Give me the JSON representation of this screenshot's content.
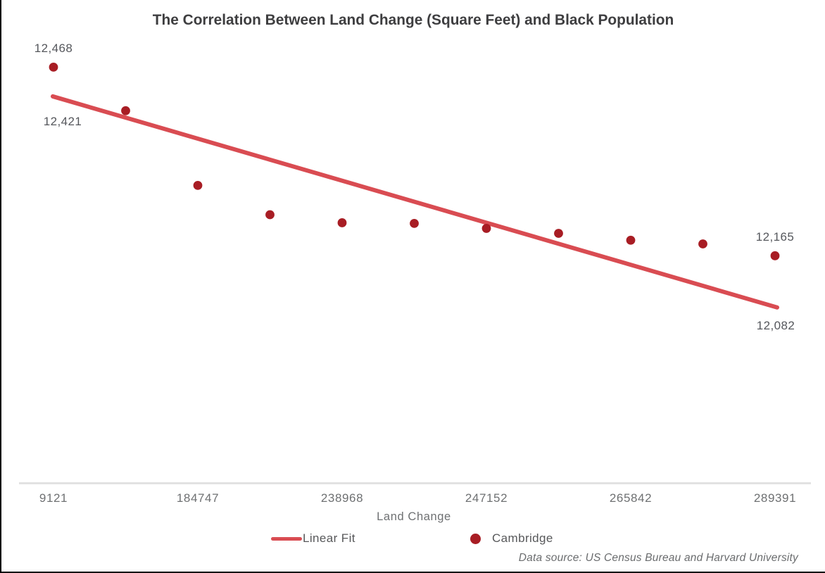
{
  "chart_data": {
    "type": "scatter",
    "title": "The Correlation Between Land Change (Square Feet) and Black Population",
    "xlabel": "Land Change",
    "ylabel": "",
    "grid": false,
    "legend_position": "bottom",
    "ylim": [
      11799,
      12508
    ],
    "x_tick_labels": [
      "9121",
      "184747",
      "238968",
      "247152",
      "265842",
      "289391"
    ],
    "x_tick_point_indices": [
      0,
      2,
      4,
      6,
      8,
      10
    ],
    "series": [
      {
        "name": "Linear Fit",
        "type": "line",
        "color": "#d94c52",
        "fit_start": 12421,
        "fit_end": 12082
      },
      {
        "name": "Cambridge",
        "type": "scatter",
        "color": "#a81d24",
        "values": [
          12468,
          12398,
          12278,
          12231,
          12218,
          12217,
          12209,
          12201,
          12190,
          12184,
          12165
        ]
      }
    ],
    "point_labels": [
      {
        "point_index": 0,
        "text": "12,468"
      },
      {
        "point_index": 10,
        "text": "12,165"
      }
    ],
    "fit_labels": {
      "start": "12,421",
      "end": "12,082"
    },
    "source_note": "Data source: US Census Bureau and Harvard University"
  },
  "legend": {
    "items": [
      {
        "label": "Linear Fit"
      },
      {
        "label": "Cambridge"
      }
    ]
  }
}
